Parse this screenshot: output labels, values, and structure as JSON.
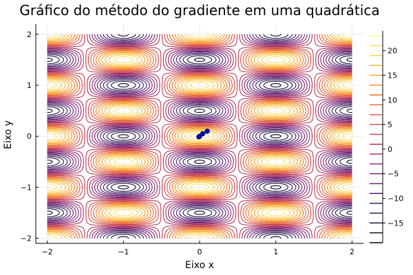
{
  "chart_data": {
    "type": "contour",
    "title": "Gráfico do método do gradiente em uma quadrática",
    "xlabel": "Eixo x",
    "ylabel": "Eixo y",
    "xlim": [
      -2.15,
      2.15
    ],
    "ylim": [
      -2.1,
      2.2
    ],
    "xticks": [
      -2,
      -1,
      0,
      1,
      2
    ],
    "yticks": [
      -2,
      -1,
      0,
      1,
      2
    ],
    "xtick_labels": [
      "−2",
      "−1",
      "0",
      "1",
      "2"
    ],
    "ytick_labels": [
      "−2",
      "−1",
      "0",
      "1",
      "2"
    ],
    "grid": true,
    "colormap": "inferno",
    "colorbar": {
      "min": -19,
      "max": 24,
      "ticks": [
        -15,
        -10,
        -5,
        0,
        5,
        10,
        15,
        20
      ],
      "tick_labels": [
        "−15",
        "−10",
        "−5",
        "0",
        "5",
        "10",
        "15",
        "20"
      ]
    },
    "contour_levels": [
      -19,
      -17,
      -15,
      -13,
      -11,
      -9,
      -7,
      -5,
      -3,
      -1,
      1,
      3,
      5,
      7,
      9,
      11,
      13,
      15,
      17,
      19,
      21,
      23
    ],
    "surface": {
      "description_formula": "f(x,y) = 20*cos(pi*x)*cos(2*pi*y) + 2.5"
    },
    "path": {
      "color": "#0000cc",
      "points": [
        [
          0.1,
          0.1
        ],
        [
          0.04,
          0.05
        ],
        [
          0.0,
          0.0
        ],
        [
          -0.01,
          -0.01
        ]
      ]
    }
  }
}
